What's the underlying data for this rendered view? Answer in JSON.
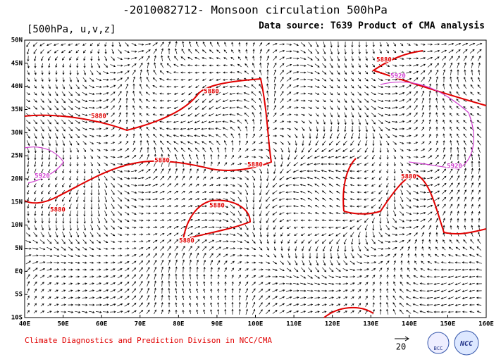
{
  "header": {
    "title": "-2010082712- Monsoon circulation 500hPa",
    "variables": "[500hPa, u,v,z]",
    "source": "Data source: T639 Product of CMA analysis"
  },
  "map": {
    "lat_labels": [
      "50N",
      "45N",
      "40N",
      "35N",
      "30N",
      "25N",
      "20N",
      "15N",
      "10N",
      "5N",
      "EQ",
      "5S",
      "10S"
    ],
    "lon_labels": [
      "40E",
      "50E",
      "60E",
      "70E",
      "80E",
      "90E",
      "100E",
      "110E",
      "120E",
      "130E",
      "140E",
      "150E",
      "160E"
    ],
    "contour_labels": [
      "5880",
      "5880",
      "5880",
      "5880",
      "5880",
      "5880",
      "5880",
      "5880",
      "5880",
      "5920",
      "5920",
      "5920"
    ]
  },
  "footer": {
    "credit": "Climate Diagnostics and Prediction Divison in NCC/CMA",
    "reference_vector": "20",
    "logos": [
      "BCC",
      "NCC"
    ]
  }
}
